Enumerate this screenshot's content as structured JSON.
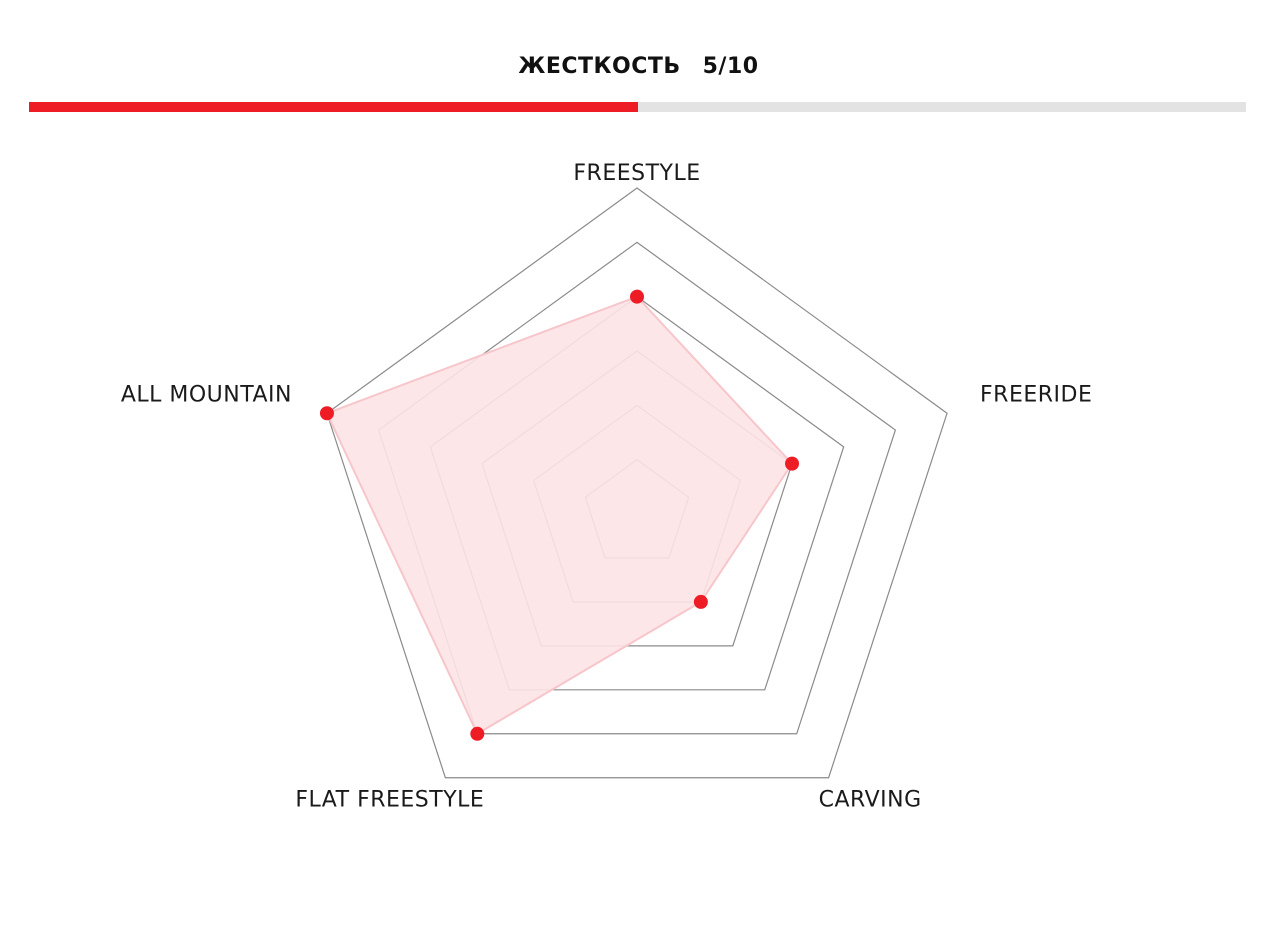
{
  "stiffness": {
    "label": "ЖЕСТКОСТЬ",
    "value_text": "5/10",
    "value": 5,
    "max": 10
  },
  "colors": {
    "accent": "#ee1c25",
    "track": "#e3e3e3",
    "grid": "#8a8a8a",
    "area_fill": "#fde3e5",
    "area_stroke": "#f7c6ca",
    "text": "#1a1a1a"
  },
  "chart_data": {
    "type": "radar",
    "axes": [
      "FREESTYLE",
      "FREERIDE",
      "CARVING",
      "FLAT FREESTYLE",
      "ALL MOUNTAIN"
    ],
    "rings": 6,
    "max": 6,
    "values": [
      4,
      3,
      2,
      5,
      6
    ],
    "grid": true,
    "legend": "none"
  }
}
